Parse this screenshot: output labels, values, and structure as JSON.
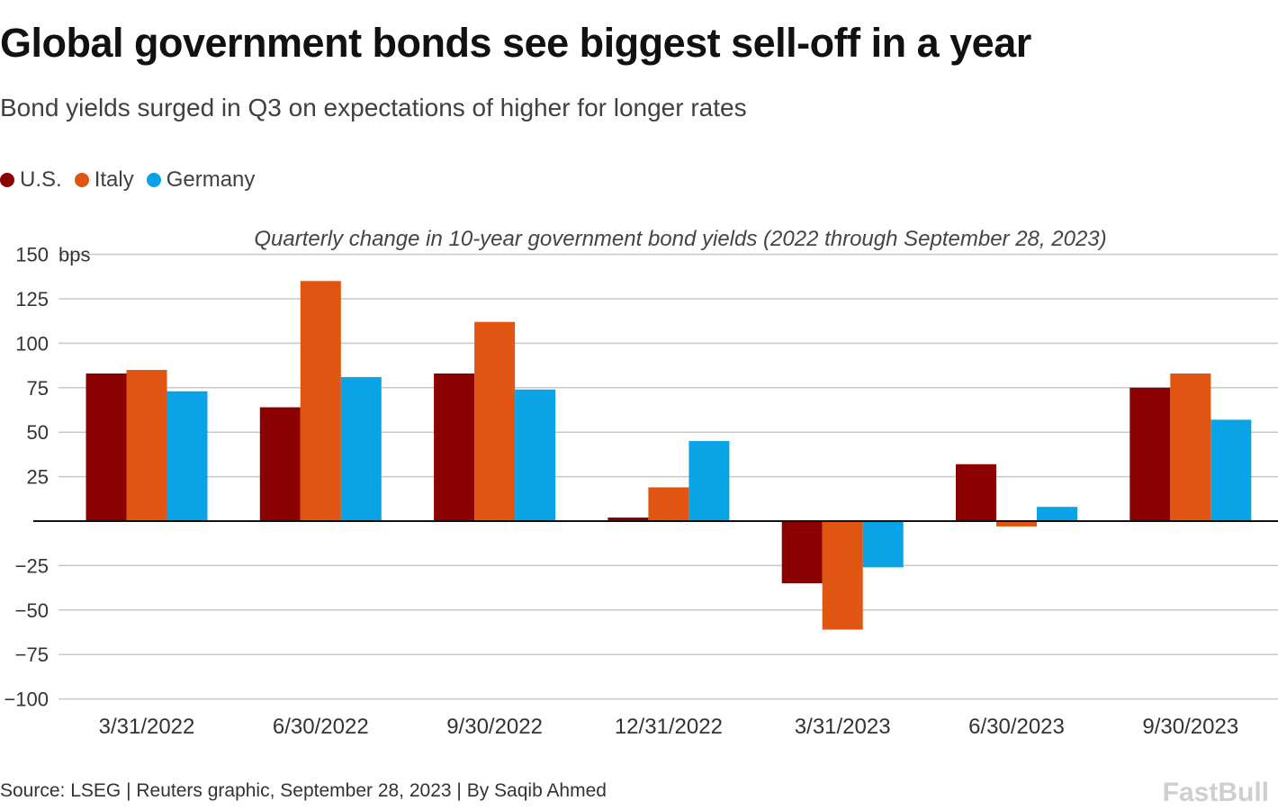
{
  "title": "Global government bonds see biggest sell-off in a year",
  "subtitle": "Bond yields surged in Q3 on expectations of higher for longer rates",
  "source": "Source: LSEG | Reuters graphic, September 28, 2023 | By Saqib Ahmed",
  "watermark": "FastBull",
  "chart_data": {
    "type": "bar",
    "title": "Quarterly change in 10-year government bond yields (2022 through September 28, 2023)",
    "ylabel": "bps",
    "ylim": [
      -100,
      150
    ],
    "yticks": [
      150,
      125,
      100,
      75,
      50,
      25,
      -25,
      -50,
      -75,
      -100
    ],
    "grid": true,
    "legend": "top-left",
    "categories": [
      "3/31/2022",
      "6/30/2022",
      "9/30/2022",
      "12/31/2022",
      "3/31/2023",
      "6/30/2023",
      "9/30/2023"
    ],
    "series": [
      {
        "name": "U.S.",
        "color": "#8b0000",
        "values": [
          83,
          64,
          83,
          2,
          -35,
          32,
          75
        ]
      },
      {
        "name": "Italy",
        "color": "#e05512",
        "values": [
          85,
          135,
          112,
          19,
          -61,
          -3,
          83
        ]
      },
      {
        "name": "Germany",
        "color": "#0aa3e6",
        "values": [
          73,
          81,
          74,
          45,
          -26,
          8,
          57
        ]
      }
    ]
  }
}
